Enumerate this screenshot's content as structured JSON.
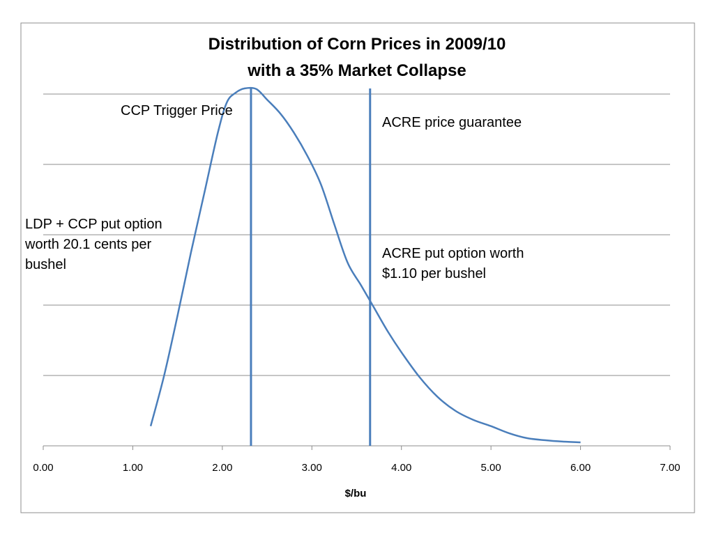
{
  "chart_data": {
    "type": "line",
    "title": [
      "Distribution of Corn Prices in 2009/10",
      "with a 35% Market Collapse"
    ],
    "xlabel": "$/bu",
    "ylabel": "",
    "xlim": [
      0,
      7
    ],
    "ylim": [
      0,
      5
    ],
    "x_ticks": [
      "0.00",
      "1.00",
      "2.00",
      "3.00",
      "4.00",
      "5.00",
      "6.00",
      "7.00"
    ],
    "y_gridlines": [
      1,
      2,
      3,
      4,
      5
    ],
    "grid": true,
    "legend": "none",
    "series": [
      {
        "color": "#4a7ebb",
        "points": [
          [
            1.2,
            0.28
          ],
          [
            1.35,
            1.0
          ],
          [
            1.5,
            1.85
          ],
          [
            1.65,
            2.75
          ],
          [
            1.8,
            3.6
          ],
          [
            1.95,
            4.45
          ],
          [
            2.05,
            4.88
          ],
          [
            2.15,
            5.02
          ],
          [
            2.25,
            5.08
          ],
          [
            2.38,
            5.07
          ],
          [
            2.5,
            4.92
          ],
          [
            2.65,
            4.72
          ],
          [
            2.8,
            4.45
          ],
          [
            2.95,
            4.12
          ],
          [
            3.1,
            3.72
          ],
          [
            3.25,
            3.15
          ],
          [
            3.4,
            2.6
          ],
          [
            3.55,
            2.28
          ],
          [
            3.7,
            1.95
          ],
          [
            3.85,
            1.62
          ],
          [
            4.0,
            1.33
          ],
          [
            4.2,
            0.98
          ],
          [
            4.4,
            0.7
          ],
          [
            4.6,
            0.5
          ],
          [
            4.8,
            0.37
          ],
          [
            5.0,
            0.28
          ],
          [
            5.2,
            0.18
          ],
          [
            5.4,
            0.11
          ],
          [
            5.6,
            0.08
          ],
          [
            5.8,
            0.06
          ],
          [
            6.0,
            0.05
          ]
        ]
      }
    ],
    "reference_lines": [
      {
        "x": 2.32,
        "color": "#4a7ebb"
      },
      {
        "x": 3.65,
        "color": "#4a7ebb"
      }
    ],
    "annotations": {
      "ccp_trigger": [
        "CCP Trigger Price"
      ],
      "acre_guarantee": [
        "ACRE price guarantee"
      ],
      "ldp_ccp_put": [
        "LDP + CCP put option",
        "worth 20.1 cents per",
        "bushel"
      ],
      "acre_put": [
        "ACRE put option worth",
        "$1.10 per bushel"
      ]
    }
  }
}
